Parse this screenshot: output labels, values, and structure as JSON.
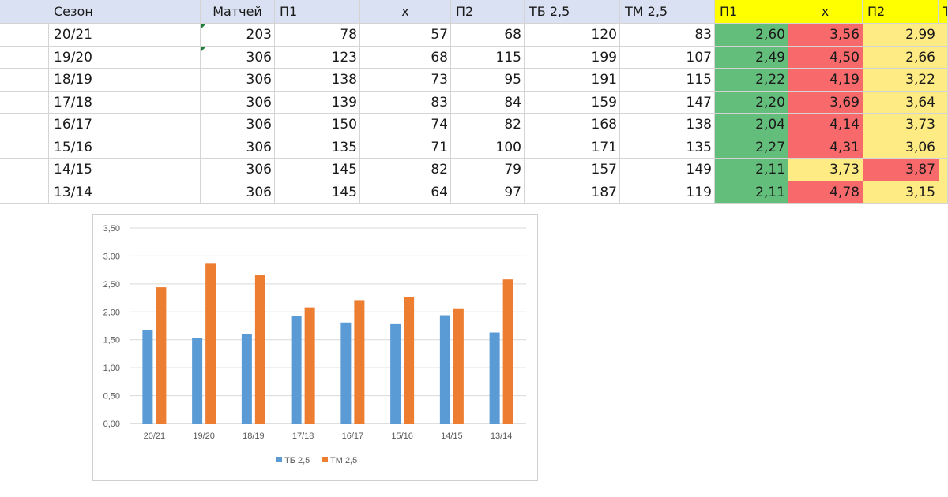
{
  "colors": {
    "header_bg": "#d9e1f2",
    "header_bg_odds": "#ffff00",
    "green": "#63be7b",
    "red": "#f8696b",
    "yellow": "#ffeb84",
    "series_tb": "#5b9bd5",
    "series_tm": "#ed7d31"
  },
  "sheet": {
    "headers": [
      "Сезон",
      "Матчей",
      "П1",
      "х",
      "П2",
      "ТБ 2,5",
      "ТМ 2,5",
      "П1",
      "х",
      "П2",
      "Т"
    ],
    "rows": [
      {
        "season": "20/21",
        "matches": "203",
        "p1": "78",
        "x": "57",
        "p2": "68",
        "tb": "120",
        "tm": "83",
        "o1": "2,60",
        "ox": "3,56",
        "o2": "2,99",
        "c1": "green",
        "cx": "red",
        "c2": "yellow"
      },
      {
        "season": "19/20",
        "matches": "306",
        "p1": "123",
        "x": "68",
        "p2": "115",
        "tb": "199",
        "tm": "107",
        "o1": "2,49",
        "ox": "4,50",
        "o2": "2,66",
        "c1": "green",
        "cx": "red",
        "c2": "yellow"
      },
      {
        "season": "18/19",
        "matches": "306",
        "p1": "138",
        "x": "73",
        "p2": "95",
        "tb": "191",
        "tm": "115",
        "o1": "2,22",
        "ox": "4,19",
        "o2": "3,22",
        "c1": "green",
        "cx": "red",
        "c2": "yellow"
      },
      {
        "season": "17/18",
        "matches": "306",
        "p1": "139",
        "x": "83",
        "p2": "84",
        "tb": "159",
        "tm": "147",
        "o1": "2,20",
        "ox": "3,69",
        "o2": "3,64",
        "c1": "green",
        "cx": "red",
        "c2": "yellow"
      },
      {
        "season": "16/17",
        "matches": "306",
        "p1": "150",
        "x": "74",
        "p2": "82",
        "tb": "168",
        "tm": "138",
        "o1": "2,04",
        "ox": "4,14",
        "o2": "3,73",
        "c1": "green",
        "cx": "red",
        "c2": "yellow"
      },
      {
        "season": "15/16",
        "matches": "306",
        "p1": "135",
        "x": "71",
        "p2": "100",
        "tb": "171",
        "tm": "135",
        "o1": "2,27",
        "ox": "4,31",
        "o2": "3,06",
        "c1": "green",
        "cx": "red",
        "c2": "yellow"
      },
      {
        "season": "14/15",
        "matches": "306",
        "p1": "145",
        "x": "82",
        "p2": "79",
        "tb": "157",
        "tm": "149",
        "o1": "2,11",
        "ox": "3,73",
        "o2": "3,87",
        "c1": "green",
        "cx": "yellow",
        "c2": "red"
      },
      {
        "season": "13/14",
        "matches": "306",
        "p1": "145",
        "x": "64",
        "p2": "97",
        "tb": "187",
        "tm": "119",
        "o1": "2,11",
        "ox": "4,78",
        "o2": "3,15",
        "c1": "green",
        "cx": "red",
        "c2": "yellow"
      }
    ]
  },
  "chart_data": {
    "type": "bar",
    "title": "",
    "categories": [
      "20/21",
      "19/20",
      "18/19",
      "17/18",
      "16/17",
      "15/16",
      "14/15",
      "13/14"
    ],
    "series": [
      {
        "name": "ТБ 2,5",
        "values": [
          1.68,
          1.53,
          1.6,
          1.93,
          1.81,
          1.78,
          1.94,
          1.63
        ]
      },
      {
        "name": "ТМ 2,5",
        "values": [
          2.44,
          2.86,
          2.66,
          2.08,
          2.21,
          2.26,
          2.05,
          2.58
        ]
      }
    ],
    "yticks": [
      "0,00",
      "0,50",
      "1,00",
      "1,50",
      "2,00",
      "2,50",
      "3,00",
      "3,50"
    ],
    "ylim": [
      0,
      3.5
    ],
    "grid": true,
    "legend": "bottom"
  }
}
